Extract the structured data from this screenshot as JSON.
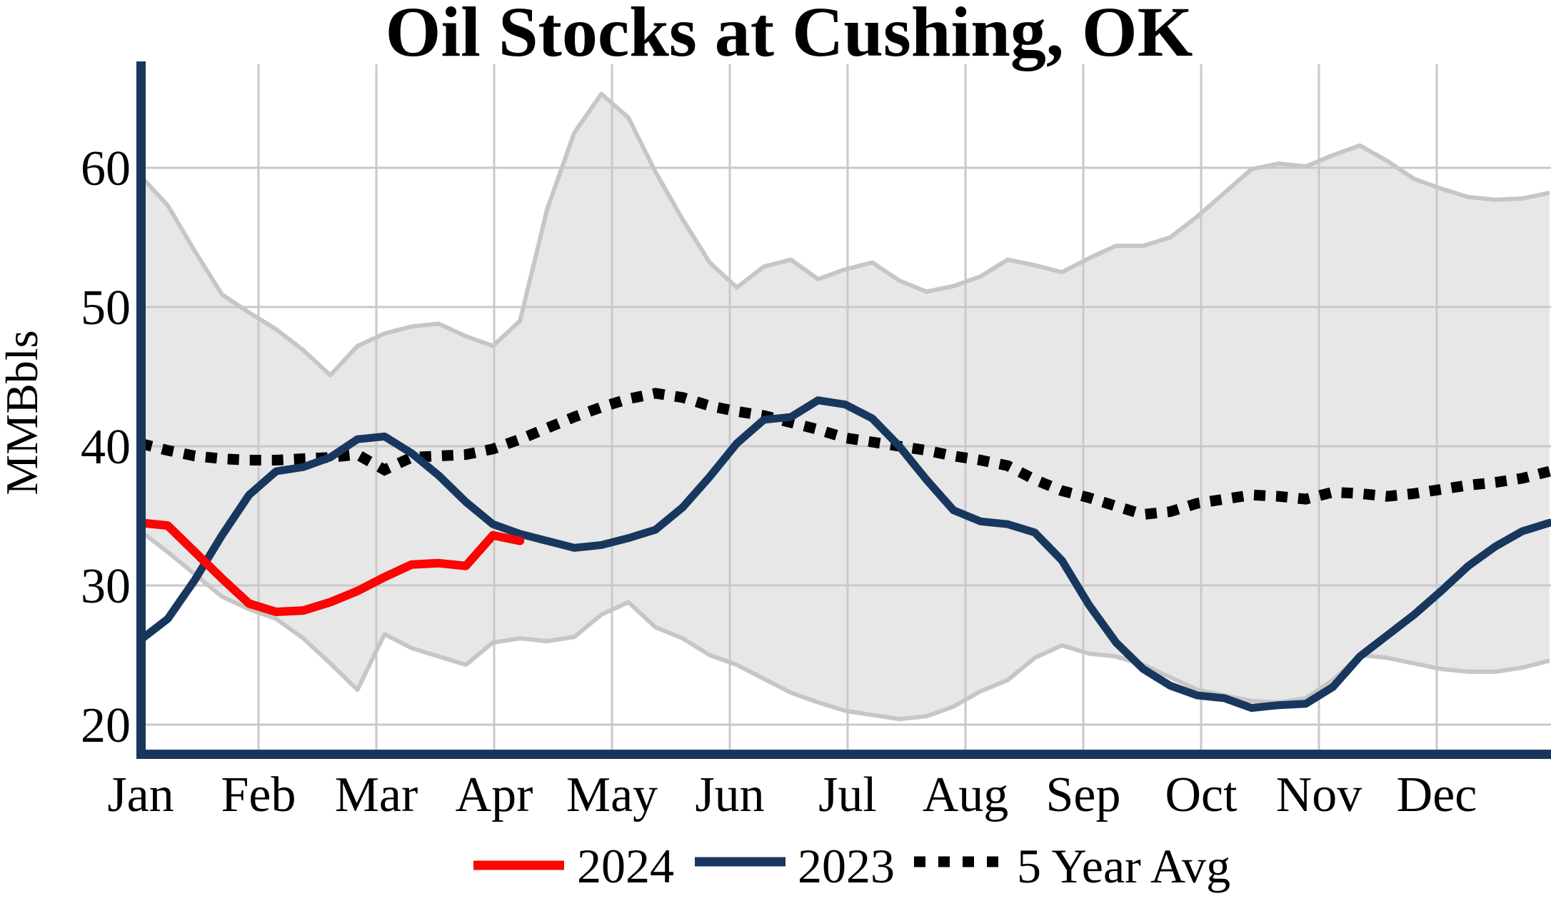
{
  "title": "Oil Stocks at Cushing, OK",
  "y_axis": {
    "label": "MMBbls",
    "ticks": [
      20,
      30,
      40,
      50,
      60
    ]
  },
  "x_axis": {
    "months": [
      "Jan",
      "Feb",
      "Mar",
      "Apr",
      "May",
      "Jun",
      "Jul",
      "Aug",
      "Sep",
      "Oct",
      "Nov",
      "Dec"
    ]
  },
  "legend": {
    "items": [
      {
        "label": "2024",
        "color": "#fb0505",
        "style": "solid"
      },
      {
        "label": "2023",
        "color": "#17375e",
        "style": "solid"
      },
      {
        "label": "5 Year Avg",
        "color": "#000000",
        "style": "dotted"
      }
    ]
  },
  "colors": {
    "series_2024": "#fb0505",
    "series_2023": "#17375e",
    "five_year_avg": "#000000",
    "band_fill": "#e7e7e7",
    "band_edge": "#c6c6c6",
    "gridline": "#c9c9c9",
    "axis_spine": "#17375e",
    "background": "#ffffff"
  },
  "chart_data": {
    "type": "line",
    "title": "Oil Stocks at Cushing, OK",
    "xlabel": "",
    "ylabel": "MMBbls",
    "ylim": [
      18,
      67
    ],
    "yticks": [
      20,
      30,
      40,
      50,
      60
    ],
    "grid": true,
    "legend_position": "bottom-center",
    "x_unit": "weekly",
    "x": [
      "Jan 1",
      "Jan 8",
      "Jan 15",
      "Jan 22",
      "Jan 29",
      "Feb 5",
      "Feb 12",
      "Feb 19",
      "Feb 26",
      "Mar 5",
      "Mar 12",
      "Mar 19",
      "Mar 26",
      "Apr 2",
      "Apr 9",
      "Apr 16",
      "Apr 23",
      "Apr 30",
      "May 7",
      "May 14",
      "May 21",
      "May 28",
      "Jun 4",
      "Jun 11",
      "Jun 18",
      "Jun 25",
      "Jul 2",
      "Jul 9",
      "Jul 16",
      "Jul 23",
      "Jul 30",
      "Aug 6",
      "Aug 13",
      "Aug 20",
      "Aug 27",
      "Sep 3",
      "Sep 10",
      "Sep 17",
      "Sep 24",
      "Oct 1",
      "Oct 8",
      "Oct 15",
      "Oct 22",
      "Oct 29",
      "Nov 5",
      "Nov 12",
      "Nov 19",
      "Nov 26",
      "Dec 3",
      "Dec 10",
      "Dec 17",
      "Dec 24",
      "Dec 31"
    ],
    "series": [
      {
        "name": "2024",
        "color": "#fb0505",
        "style": "solid",
        "values": [
          34.5,
          34.3,
          32.4,
          30.5,
          28.7,
          28.1,
          28.2,
          28.8,
          29.6,
          30.6,
          31.5,
          31.6,
          31.4,
          33.6,
          33.2
        ]
      },
      {
        "name": "2023",
        "color": "#17375e",
        "style": "solid",
        "values": [
          26.1,
          27.6,
          30.4,
          33.6,
          36.5,
          38.2,
          38.5,
          39.2,
          40.5,
          40.7,
          39.5,
          37.9,
          36.0,
          34.4,
          33.7,
          33.2,
          32.7,
          32.9,
          33.4,
          34.0,
          35.6,
          37.8,
          40.2,
          41.9,
          42.1,
          43.3,
          43.0,
          42.0,
          40.0,
          37.6,
          35.4,
          34.6,
          34.4,
          33.8,
          31.8,
          28.6,
          25.9,
          24.0,
          22.8,
          22.1,
          21.9,
          21.2,
          21.4,
          21.5,
          22.7,
          24.9,
          26.4,
          27.9,
          29.6,
          31.4,
          32.8,
          33.9,
          34.5
        ]
      },
      {
        "name": "5 Year Avg",
        "color": "#000000",
        "style": "dotted",
        "values": [
          40.2,
          39.7,
          39.3,
          39.1,
          39.0,
          39.0,
          39.1,
          39.2,
          39.4,
          38.3,
          39.2,
          39.3,
          39.4,
          39.8,
          40.5,
          41.3,
          42.1,
          42.8,
          43.4,
          43.8,
          43.5,
          42.9,
          42.5,
          42.2,
          41.7,
          41.2,
          40.6,
          40.3,
          40.0,
          39.7,
          39.3,
          39.0,
          38.6,
          37.6,
          36.8,
          36.3,
          35.7,
          35.1,
          35.3,
          35.9,
          36.2,
          36.5,
          36.4,
          36.2,
          36.7,
          36.6,
          36.4,
          36.6,
          36.9,
          37.2,
          37.4,
          37.7,
          38.2
        ]
      }
    ],
    "band": {
      "name": "5 Year Range",
      "fill": "#e7e7e7",
      "edge": "#c6c6c6",
      "upper": [
        59.4,
        57.3,
        54.0,
        50.9,
        49.6,
        48.4,
        46.9,
        45.1,
        47.2,
        48.1,
        48.6,
        48.8,
        47.9,
        47.2,
        49.0,
        57.0,
        62.5,
        65.3,
        63.6,
        59.7,
        56.3,
        53.2,
        51.4,
        52.9,
        53.4,
        52.0,
        52.7,
        53.2,
        51.9,
        51.1,
        51.5,
        52.2,
        53.4,
        53.0,
        52.5,
        53.5,
        54.4,
        54.4,
        55.0,
        56.5,
        58.2,
        59.9,
        60.3,
        60.1,
        60.9,
        61.6,
        60.5,
        59.2,
        58.5,
        57.9,
        57.7,
        57.8,
        58.2
      ],
      "lower": [
        33.9,
        32.4,
        30.8,
        29.2,
        28.3,
        27.6,
        26.2,
        24.4,
        22.5,
        26.5,
        25.5,
        24.9,
        24.3,
        25.9,
        26.2,
        26.0,
        26.3,
        27.9,
        28.8,
        27.0,
        26.2,
        25.0,
        24.3,
        23.3,
        22.3,
        21.6,
        21.0,
        20.7,
        20.4,
        20.6,
        21.3,
        22.4,
        23.2,
        24.8,
        25.7,
        25.1,
        24.9,
        24.3,
        23.4,
        22.5,
        22.1,
        21.7,
        21.6,
        21.9,
        23.2,
        25.0,
        24.8,
        24.4,
        24.0,
        23.8,
        23.8,
        24.1,
        24.6
      ]
    }
  }
}
